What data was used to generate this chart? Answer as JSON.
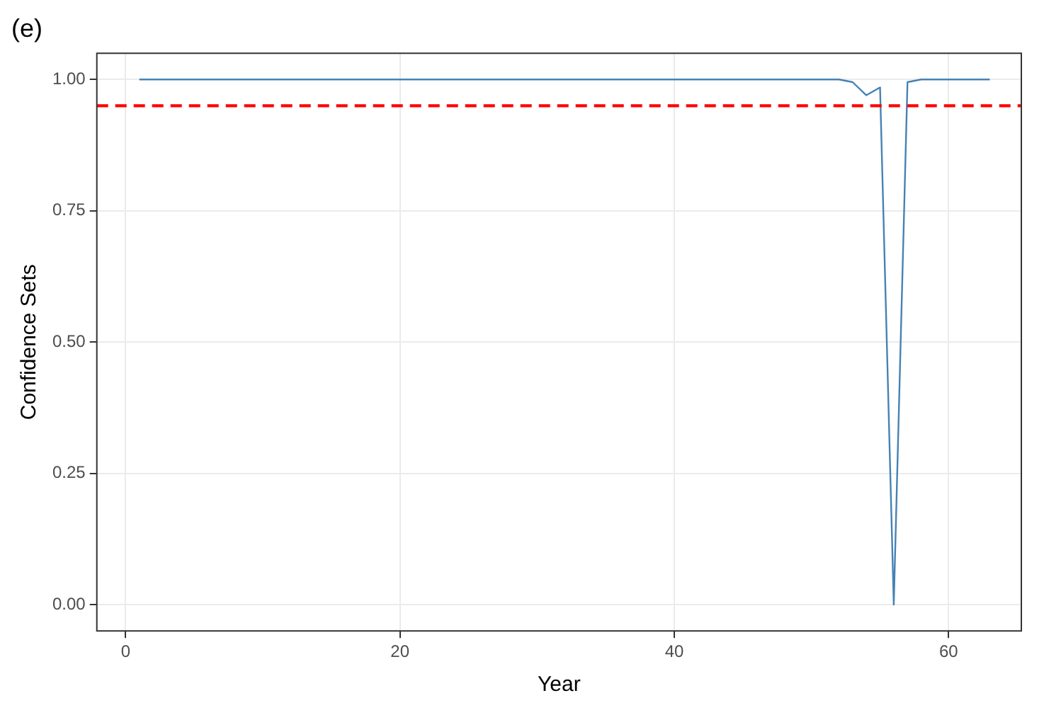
{
  "chart_data": {
    "type": "line",
    "title": "(e)",
    "xlabel": "Year",
    "ylabel": "Confidence Sets",
    "series": [
      {
        "color": "#4682b4",
        "x": [
          1,
          52,
          53,
          54,
          55,
          56,
          57,
          58,
          63
        ],
        "values": [
          1,
          1,
          0.995,
          0.97,
          0.985,
          0,
          0.995,
          1,
          1
        ]
      }
    ],
    "xlim": [
      -2.1,
      65.3
    ],
    "ylim": [
      -0.05,
      1.05
    ],
    "xticks": [
      0,
      20,
      40,
      60
    ],
    "yticks": [
      {
        "value": 0,
        "label": "0.00"
      },
      {
        "value": 0.25,
        "label": "0.25"
      },
      {
        "value": 0.5,
        "label": "0.50"
      },
      {
        "value": 0.75,
        "label": "0.75"
      },
      {
        "value": 1,
        "label": "1.00"
      }
    ],
    "ref_lines": [
      {
        "axis": "y",
        "value": 0.95,
        "color": "#ff0000",
        "line_style": "dashed"
      }
    ],
    "grid": true,
    "legend": false,
    "marker": "none",
    "line_style": "solid"
  }
}
